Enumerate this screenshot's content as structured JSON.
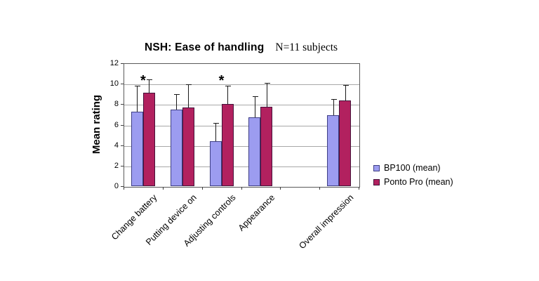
{
  "chart_data": {
    "type": "bar",
    "title": "NSH: Ease of handling",
    "subtitle": "N=11 subjects",
    "ylabel": "Mean rating",
    "xlabel": "",
    "ylim": [
      0,
      12
    ],
    "ytick_step": 2,
    "grid": true,
    "legend_position": "right",
    "categories": [
      "Change battery",
      "Putting device on",
      "Adjusting controls",
      "Appearance",
      "",
      "Overall impression"
    ],
    "series": [
      {
        "name": "BP100 (mean)",
        "fill": "#9c9cf0",
        "border": "#3f3f85",
        "values": [
          7.3,
          7.45,
          4.4,
          6.75,
          null,
          6.9
        ],
        "error_top": [
          9.8,
          9.0,
          6.2,
          8.8,
          null,
          8.5
        ]
      },
      {
        "name": "Ponto Pro (mean)",
        "fill": "#b2215f",
        "border": "#45123a",
        "values": [
          9.1,
          7.7,
          8.05,
          7.75,
          null,
          8.4
        ],
        "error_top": [
          10.4,
          9.95,
          9.8,
          10.05,
          null,
          9.9
        ]
      }
    ],
    "annotations": [
      {
        "symbol": "*",
        "category_index": 0,
        "y": 10.9
      },
      {
        "symbol": "*",
        "category_index": 2,
        "y": 10.9
      }
    ],
    "colors": {
      "gridline": "#a8a8a8",
      "axis": "#5a5a5a",
      "error_bar": "#1a1a1a",
      "background": "#ffffff",
      "text": "#000000"
    }
  }
}
